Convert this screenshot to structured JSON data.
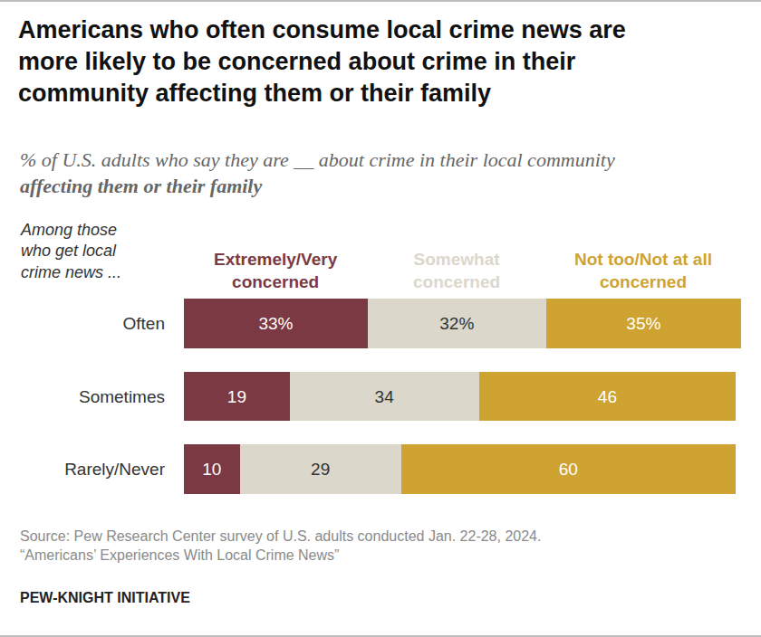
{
  "chart_data": {
    "type": "bar",
    "orientation": "horizontal",
    "stacked": true,
    "data_labels": true,
    "tick_labels": "y",
    "title": "Americans who often consume local crime news are more likely to be concerned about crime in their community affecting them or their family",
    "subtitle": "% of U.S. adults who say they are __ about crime in their local community",
    "subtitle_emphasis": "affecting them or their family",
    "category_header": "Among those who get local crime news ...",
    "categories": [
      "Often",
      "Sometimes",
      "Rarely/Never"
    ],
    "series": [
      {
        "name": "Extremely/Very concerned",
        "color": "#7b3944",
        "values": [
          33,
          19,
          10
        ],
        "value_labels": [
          "33%",
          "19",
          "10"
        ]
      },
      {
        "name": "Somewhat concerned",
        "color": "#dbd7cb",
        "values": [
          32,
          34,
          29
        ],
        "value_labels": [
          "32%",
          "34",
          "29"
        ]
      },
      {
        "name": "Not too/Not at all concerned",
        "color": "#cfa332",
        "values": [
          35,
          46,
          60
        ],
        "value_labels": [
          "35%",
          "46",
          "60"
        ]
      }
    ],
    "xlim": [
      0,
      100
    ],
    "xticks": [],
    "source": [
      "Source: Pew Research Center survey of U.S. adults conducted Jan. 22-28, 2024.",
      "“Americans’ Experiences With Local Crime News”"
    ],
    "credit": "PEW-KNIGHT INITIATIVE"
  }
}
